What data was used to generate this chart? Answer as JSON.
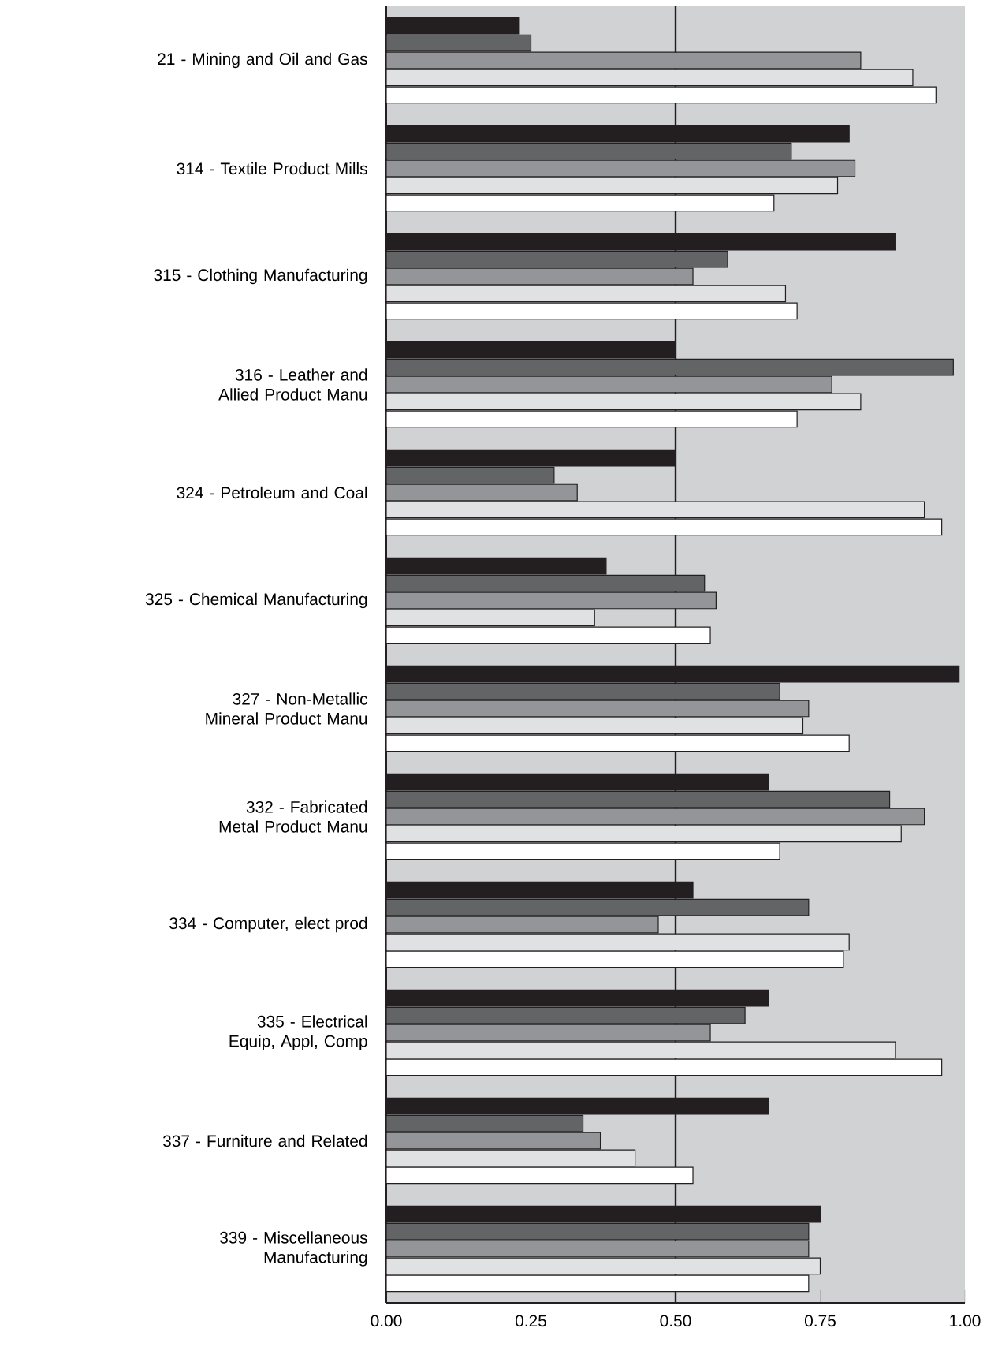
{
  "chart_data": {
    "type": "bar",
    "orientation": "horizontal",
    "categories": [
      "21 - Mining and Oil and Gas",
      "314 - Textile Product Mills",
      "315 - Clothing Manufacturing",
      "316 - Leather and Allied Product Manu",
      "324 - Petroleum and Coal",
      "325 - Chemical Manufacturing",
      "327 - Non-Metallic Mineral Product Manu",
      "332 - Fabricated Metal Product Manu",
      "334 - Computer, elect prod",
      "335 - Electrical Equip, Appl,  Comp",
      "337 - Furniture and Related",
      "339 - Miscellaneous Manufacturing"
    ],
    "series": [
      {
        "color": "#231f20",
        "values": [
          0.23,
          0.8,
          0.88,
          0.5,
          0.5,
          0.38,
          0.99,
          0.66,
          0.53,
          0.66,
          0.66,
          0.75
        ]
      },
      {
        "color": "#636466",
        "values": [
          0.25,
          0.7,
          0.59,
          0.98,
          0.29,
          0.55,
          0.68,
          0.87,
          0.73,
          0.62,
          0.34,
          0.73
        ]
      },
      {
        "color": "#939598",
        "values": [
          0.82,
          0.81,
          0.53,
          0.77,
          0.33,
          0.57,
          0.73,
          0.93,
          0.47,
          0.56,
          0.37,
          0.73
        ]
      },
      {
        "color": "#e0e1e2",
        "values": [
          0.91,
          0.78,
          0.69,
          0.82,
          0.93,
          0.36,
          0.72,
          0.89,
          0.8,
          0.88,
          0.43,
          0.75
        ]
      },
      {
        "color": "#ffffff",
        "values": [
          0.95,
          0.67,
          0.71,
          0.71,
          0.96,
          0.56,
          0.8,
          0.68,
          0.79,
          0.96,
          0.53,
          0.73
        ]
      }
    ],
    "xlim": [
      0,
      1
    ],
    "xticks": [
      {
        "value": 0,
        "label": "0.00"
      },
      {
        "value": 0.25,
        "label": "0.25"
      },
      {
        "value": 0.5,
        "label": "0.50"
      },
      {
        "value": 0.75,
        "label": "0.75"
      },
      {
        "value": 1,
        "label": "1.00"
      }
    ],
    "ref_lines": [
      {
        "axis": "x",
        "value": 0.5,
        "color": "#231f20"
      }
    ]
  }
}
